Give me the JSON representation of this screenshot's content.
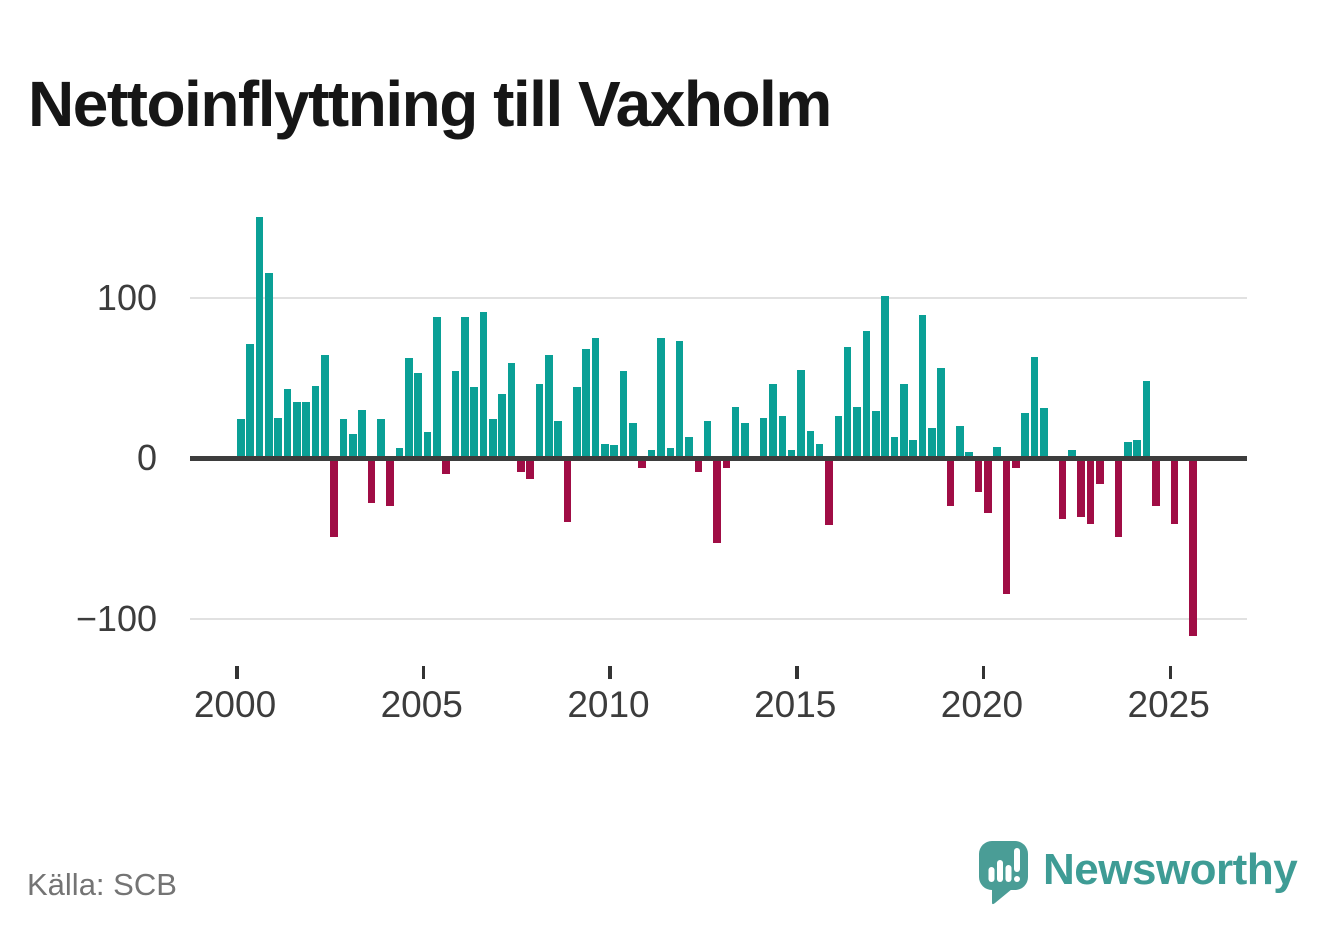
{
  "title": "Nettoinflyttning till Vaxholm",
  "source_label": "Källa: SCB",
  "branding": {
    "name": "Newsworthy",
    "logo_icon": "speech-bubble-bar-chart-icon",
    "icon_color": "#4a9d96",
    "text_color": "#3e9c95"
  },
  "chart_data": {
    "type": "bar",
    "title": "Nettoinflyttning till Vaxholm",
    "source": "Källa: SCB",
    "frequency": "quarterly",
    "start_year": 2000,
    "start_quarter": 1,
    "end_year": 2025,
    "end_quarter": 3,
    "values": [
      24,
      71,
      150,
      115,
      25,
      43,
      35,
      35,
      45,
      64,
      -49,
      24,
      15,
      30,
      -28,
      24,
      -30,
      6,
      62,
      53,
      16,
      88,
      -10,
      54,
      88,
      44,
      91,
      24,
      40,
      59,
      -9,
      -13,
      46,
      64,
      23,
      -40,
      44,
      68,
      75,
      9,
      8,
      54,
      22,
      -6,
      5,
      75,
      6,
      73,
      13,
      -9,
      23,
      -53,
      -6,
      32,
      22,
      0,
      25,
      46,
      26,
      5,
      55,
      17,
      9,
      -42,
      26,
      69,
      32,
      79,
      29,
      101,
      13,
      46,
      11,
      89,
      19,
      56,
      -30,
      20,
      4,
      -21,
      -34,
      7,
      -85,
      -6,
      28,
      63,
      31,
      0,
      -38,
      5,
      -37,
      -41,
      -16,
      0,
      -49,
      10,
      11,
      48,
      -30,
      0,
      -41,
      0,
      -111
    ],
    "positive_color": "#0aa096",
    "negative_color": "#a00d45",
    "ylim": [
      -125,
      165
    ],
    "yticks": [
      {
        "value": 100,
        "label": "100"
      },
      {
        "value": 0,
        "label": "0"
      },
      {
        "value": -100,
        "label": "−100"
      }
    ],
    "gridlines": [
      100,
      -100
    ],
    "xticks": [
      {
        "label": "2000",
        "index": 0
      },
      {
        "label": "2005",
        "index": 20
      },
      {
        "label": "2010",
        "index": 40
      },
      {
        "label": "2015",
        "index": 60
      },
      {
        "label": "2020",
        "index": 80
      },
      {
        "label": "2025",
        "index": 100
      }
    ],
    "legend": null,
    "grid": "horizontal-only"
  }
}
